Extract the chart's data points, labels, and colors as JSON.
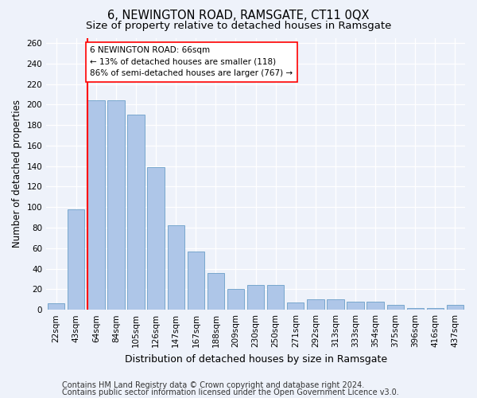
{
  "title": "6, NEWINGTON ROAD, RAMSGATE, CT11 0QX",
  "subtitle": "Size of property relative to detached houses in Ramsgate",
  "xlabel": "Distribution of detached houses by size in Ramsgate",
  "ylabel": "Number of detached properties",
  "categories": [
    "22sqm",
    "43sqm",
    "64sqm",
    "84sqm",
    "105sqm",
    "126sqm",
    "147sqm",
    "167sqm",
    "188sqm",
    "209sqm",
    "230sqm",
    "250sqm",
    "271sqm",
    "292sqm",
    "313sqm",
    "333sqm",
    "354sqm",
    "375sqm",
    "396sqm",
    "416sqm",
    "437sqm"
  ],
  "values": [
    6,
    98,
    204,
    204,
    190,
    139,
    82,
    57,
    36,
    20,
    24,
    24,
    7,
    10,
    10,
    8,
    8,
    5,
    2,
    2,
    5
  ],
  "bar_color": "#aec6e8",
  "bar_edge_color": "#6a9fc8",
  "annotation_box_text": "6 NEWINGTON ROAD: 66sqm\n← 13% of detached houses are smaller (118)\n86% of semi-detached houses are larger (767) →",
  "annotation_box_color": "white",
  "annotation_box_edge_color": "red",
  "vline_color": "red",
  "ylim": [
    0,
    265
  ],
  "yticks": [
    0,
    20,
    40,
    60,
    80,
    100,
    120,
    140,
    160,
    180,
    200,
    220,
    240,
    260
  ],
  "background_color": "#eef2fa",
  "grid_color": "white",
  "footer_line1": "Contains HM Land Registry data © Crown copyright and database right 2024.",
  "footer_line2": "Contains public sector information licensed under the Open Government Licence v3.0.",
  "title_fontsize": 10.5,
  "subtitle_fontsize": 9.5,
  "xlabel_fontsize": 9,
  "ylabel_fontsize": 8.5,
  "tick_fontsize": 7.5,
  "annotation_fontsize": 7.5,
  "footer_fontsize": 7
}
